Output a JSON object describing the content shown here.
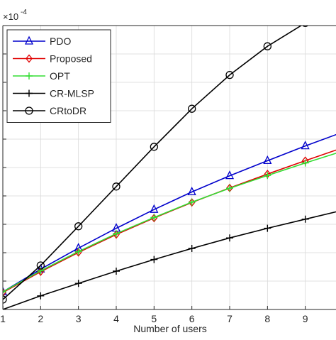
{
  "chart_data": {
    "type": "line",
    "xlabel": "Number of users",
    "exponent_label": "×10",
    "exponent_power": "-4",
    "x_ticks": [
      1,
      2,
      3,
      4,
      5,
      6,
      7,
      8,
      9
    ],
    "xlim": [
      1,
      10
    ],
    "ylim": [
      0,
      1.0
    ],
    "y_gridlines": [
      0,
      0.1,
      0.2,
      0.3,
      0.4,
      0.5,
      0.6,
      0.7,
      0.8,
      0.9,
      1.0
    ],
    "grid": true,
    "legend_position": "top-left",
    "x": [
      1,
      2,
      3,
      4,
      5,
      6,
      7,
      8,
      9,
      10
    ],
    "series": [
      {
        "name": "PDO",
        "color": "#0000cc",
        "marker": "triangle",
        "values": [
          0.062,
          0.142,
          0.216,
          0.286,
          0.352,
          0.414,
          0.471,
          0.524,
          0.576,
          0.625
        ]
      },
      {
        "name": "Proposed",
        "color": "#e00000",
        "marker": "diamond",
        "values": [
          0.06,
          0.133,
          0.201,
          0.264,
          0.322,
          0.377,
          0.428,
          0.477,
          0.524,
          0.57
        ]
      },
      {
        "name": "OPT",
        "color": "#33dd33",
        "marker": "plus",
        "values": [
          0.062,
          0.136,
          0.204,
          0.267,
          0.324,
          0.378,
          0.427,
          0.472,
          0.516,
          0.558
        ]
      },
      {
        "name": "CR-MLSP",
        "color": "#000000",
        "marker": "plus",
        "values": [
          0.0,
          0.048,
          0.092,
          0.135,
          0.176,
          0.215,
          0.252,
          0.286,
          0.318,
          0.35
        ]
      },
      {
        "name": "CRtoDR",
        "color": "#000000",
        "marker": "circle",
        "values": [
          0.035,
          0.155,
          0.293,
          0.433,
          0.573,
          0.707,
          0.826,
          0.927,
          1.009,
          1.07
        ]
      }
    ]
  }
}
